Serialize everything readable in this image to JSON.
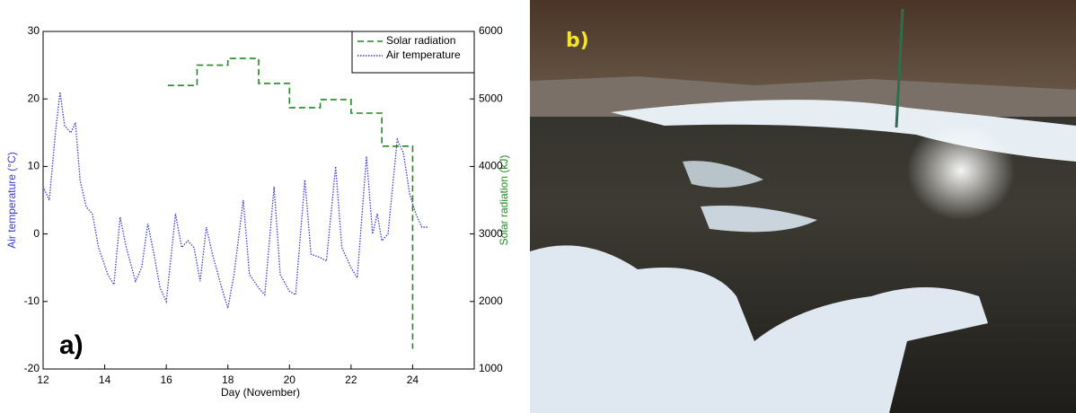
{
  "chart_data": {
    "type": "line",
    "panel_label": "a)",
    "xlabel": "Day (November)",
    "ylabel": "Air temperature (°C)",
    "y2label": "Solar radiation (kJ)",
    "xlim": [
      12,
      26
    ],
    "xticks": [
      12,
      14,
      16,
      18,
      20,
      22,
      24
    ],
    "ylim": [
      -20,
      30
    ],
    "yticks": [
      -20,
      -10,
      0,
      10,
      20,
      30
    ],
    "y2lim": [
      1000,
      6000
    ],
    "y2ticks": [
      1000,
      2000,
      3000,
      4000,
      5000,
      6000
    ],
    "legend": "upper right",
    "series": [
      {
        "name": "Solar radiation",
        "color": "#1f8c1f",
        "axis": "y2",
        "style": "dashed",
        "x": [
          16.05,
          17,
          17,
          18,
          18,
          19,
          19,
          20,
          20,
          21,
          21,
          22,
          22,
          23,
          23,
          24,
          24
        ],
        "values": [
          5200,
          5200,
          5500,
          5500,
          5600,
          5600,
          5230,
          5230,
          4870,
          4870,
          4990,
          4990,
          4790,
          4790,
          4300,
          4300,
          1300
        ]
      },
      {
        "name": "Air temperature",
        "color": "#3a3ad6",
        "style": "dotted",
        "x": [
          12.0,
          12.2,
          12.4,
          12.55,
          12.7,
          12.9,
          13.05,
          13.2,
          13.4,
          13.6,
          13.8,
          14.1,
          14.3,
          14.5,
          14.7,
          15.0,
          15.2,
          15.4,
          15.6,
          15.8,
          16.0,
          16.3,
          16.5,
          16.7,
          16.9,
          17.1,
          17.3,
          17.5,
          17.8,
          18.0,
          18.2,
          18.5,
          18.7,
          19.0,
          19.2,
          19.5,
          19.7,
          20.0,
          20.2,
          20.5,
          20.7,
          21.0,
          21.2,
          21.5,
          21.7,
          22.0,
          22.2,
          22.5,
          22.7,
          22.85,
          23.0,
          23.2,
          23.5,
          23.7,
          23.9,
          24.1,
          24.3,
          24.5
        ],
        "values": [
          7,
          5,
          15,
          21,
          16,
          15,
          16.5,
          8,
          4,
          3,
          -2,
          -6,
          -7.5,
          2.5,
          -2,
          -7,
          -5,
          1.5,
          -3,
          -8,
          -10,
          3,
          -2,
          -1,
          -2,
          -7,
          1,
          -3,
          -8,
          -11,
          -6,
          5,
          -6,
          -8,
          -9,
          7,
          -6,
          -8.5,
          -9,
          8,
          -3,
          -3.5,
          -4,
          10,
          -2,
          -5,
          -6.5,
          11.5,
          0,
          3,
          -1,
          0,
          14,
          12,
          6,
          3,
          1,
          1
        ]
      }
    ]
  },
  "photo": {
    "label": "b)"
  }
}
